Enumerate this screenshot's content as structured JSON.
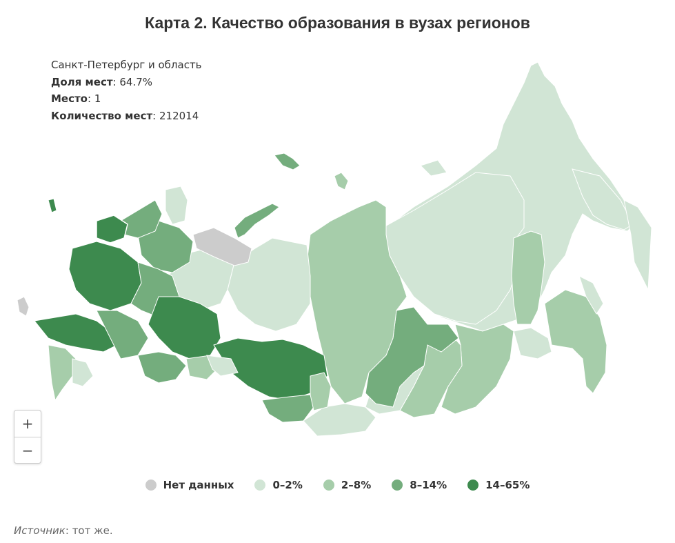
{
  "title": "Карта 2. Качество образования в вузах регионов",
  "info": {
    "region": "Санкт-Петербург и область",
    "share_label": "Доля мест",
    "share_value": ": 64.7%",
    "rank_label": "Место",
    "rank_value": ": 1",
    "count_label": "Количество мест",
    "count_value": ": 212014"
  },
  "zoom": {
    "in_label": "+",
    "out_label": "−"
  },
  "legend": [
    {
      "label": "Нет данных",
      "color": "#cccccc"
    },
    {
      "label": "0–2%",
      "color": "#d1e5d5"
    },
    {
      "label": "2–8%",
      "color": "#a6cdaa"
    },
    {
      "label": "8–14%",
      "color": "#74ad7d"
    },
    {
      "label": "14–65%",
      "color": "#3d8a4e"
    }
  ],
  "source": {
    "label": "Источник",
    "text": ": тот же."
  },
  "colors": {
    "no_data": "#cccccc",
    "c0_2": "#d1e5d5",
    "c2_8": "#a6cdaa",
    "c8_14": "#74ad7d",
    "c14_65": "#3d8a4e"
  }
}
